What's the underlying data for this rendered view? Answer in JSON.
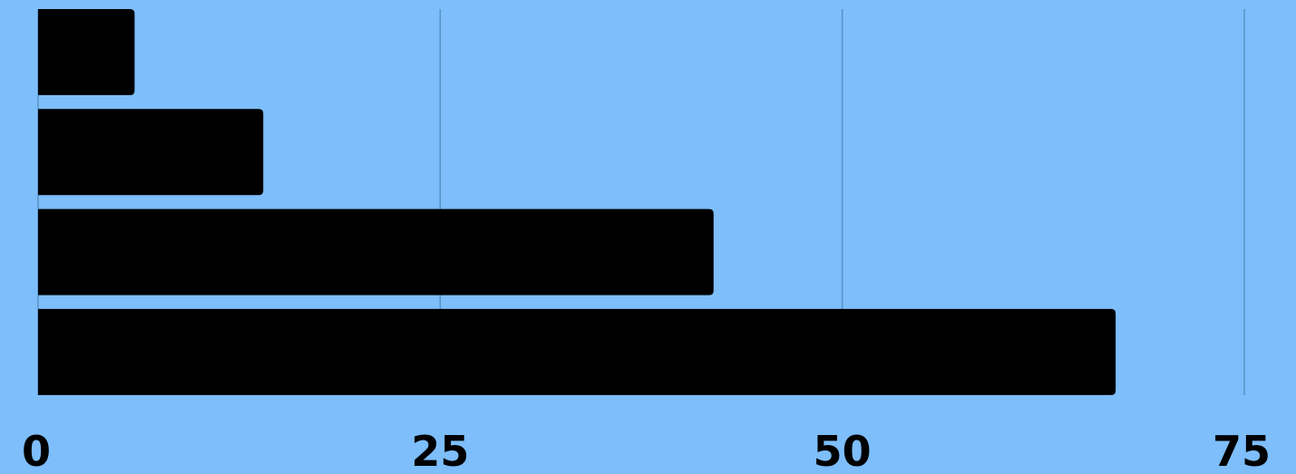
{
  "colors": {
    "background": "#7dbefb",
    "bar": "#000000",
    "gridline": "#5a93c4",
    "tick_label": "#000000"
  },
  "chart_data": {
    "type": "bar",
    "orientation": "horizontal",
    "title": "",
    "xlabel": "",
    "ylabel": "",
    "categories": [
      "",
      "",
      "",
      ""
    ],
    "values": [
      6,
      14,
      42,
      67
    ],
    "xlim": [
      0,
      75
    ],
    "x_ticks": [
      "0",
      "25",
      "50",
      "75"
    ],
    "grid": true,
    "legend": "none"
  }
}
